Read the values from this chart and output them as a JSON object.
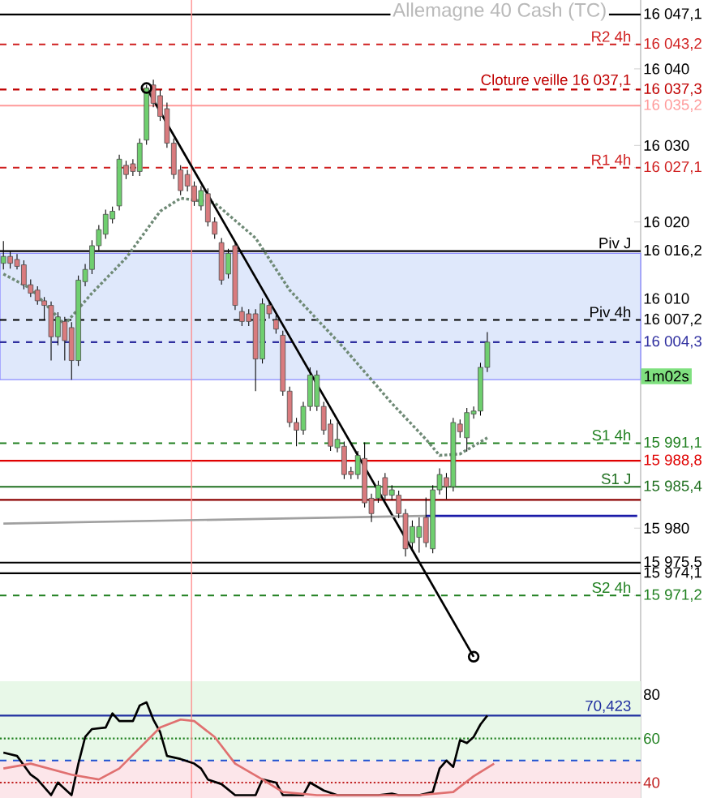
{
  "chart_data": [
    {
      "type": "candlestick",
      "title": "Allemagne 40 Cash (TC)",
      "categories": [
        null,
        null,
        null,
        null,
        null,
        null,
        null,
        null,
        null,
        null,
        null,
        null,
        null,
        null,
        null,
        null,
        null,
        null,
        null,
        null,
        null,
        null,
        null,
        null,
        null,
        null,
        null,
        null,
        null,
        null,
        null,
        null,
        null,
        null,
        null,
        null,
        null,
        null,
        null,
        null,
        null,
        null,
        null,
        null,
        null,
        null,
        null,
        null,
        null,
        null,
        null,
        null,
        null,
        null,
        null,
        null,
        null,
        null,
        null,
        null,
        null,
        null,
        null,
        null,
        null,
        null,
        null,
        null,
        null,
        null,
        null,
        null,
        null,
        null,
        null,
        null,
        null,
        null,
        null,
        null,
        null,
        null,
        null,
        null,
        null,
        null,
        null,
        null,
        null,
        null,
        null,
        null,
        null,
        null
      ],
      "ohlc": [
        [
          16014.6,
          16017.5,
          16013.8,
          16015.5
        ],
        [
          16015.5,
          16016.2,
          16013.9,
          16014.6
        ],
        [
          16015.1,
          16015.8,
          16013.8,
          16014.2
        ],
        [
          16014.4,
          16015.0,
          16011.2,
          16011.8
        ],
        [
          16011.8,
          16012.5,
          16010.2,
          16010.7
        ],
        [
          16011.1,
          16011.6,
          16009.2,
          16009.7
        ],
        [
          16009.7,
          16010.2,
          16007.2,
          16009.1
        ],
        [
          16009.1,
          16009.6,
          16001.9,
          16005.0
        ],
        [
          16005.0,
          16008.2,
          16003.9,
          16007.6
        ],
        [
          16007.0,
          16007.6,
          16001.9,
          16004.5
        ],
        [
          16006.2,
          16006.9,
          15999.4,
          16001.9
        ],
        [
          16001.9,
          16013.0,
          16001.2,
          16012.4
        ],
        [
          16012.2,
          16014.5,
          16011.6,
          16013.8
        ],
        [
          16013.8,
          16017.6,
          16013.2,
          16016.9
        ],
        [
          16016.9,
          16019.6,
          16016.3,
          16019.0
        ],
        [
          16018.4,
          16021.6,
          16017.8,
          16021.0
        ],
        [
          16020.4,
          16022.0,
          16019.8,
          16021.4
        ],
        [
          16022.1,
          16028.8,
          16021.5,
          16028.2
        ],
        [
          16027.4,
          16028.0,
          16025.6,
          16026.2
        ],
        [
          16027.6,
          16028.2,
          16026.0,
          16026.6
        ],
        [
          16026.6,
          16030.9,
          16026.0,
          16030.3
        ],
        [
          16030.7,
          16037.9,
          16030.1,
          16037.5
        ],
        [
          16037.9,
          16038.6,
          16035.0,
          16035.5
        ],
        [
          16036.5,
          16037.3,
          16033.2,
          16033.8
        ],
        [
          16034.8,
          16035.6,
          16029.7,
          16030.3
        ],
        [
          16030.3,
          16030.9,
          16025.6,
          16026.2
        ],
        [
          16026.8,
          16027.4,
          16023.5,
          16024.1
        ],
        [
          16026.2,
          16026.8,
          16024.0,
          16024.7
        ],
        [
          16024.7,
          16025.3,
          16022.1,
          16022.7
        ],
        [
          16022.1,
          16024.7,
          16021.5,
          16024.1
        ],
        [
          16023.7,
          16024.4,
          16019.4,
          16020.0
        ],
        [
          16020.0,
          16020.6,
          16017.8,
          16018.4
        ],
        [
          16017.3,
          16017.9,
          16011.8,
          16012.4
        ],
        [
          16013.2,
          16016.5,
          16012.6,
          16015.9
        ],
        [
          16016.9,
          16017.5,
          16008.5,
          16009.1
        ],
        [
          16008.3,
          16008.9,
          16006.4,
          16007.0
        ],
        [
          16008.0,
          16008.6,
          16006.4,
          16007.0
        ],
        [
          16008.0,
          16008.6,
          15997.9,
          16002.1
        ],
        [
          16002.1,
          16010.0,
          16001.5,
          16009.3
        ],
        [
          16009.1,
          16009.7,
          16007.4,
          16008.0
        ],
        [
          16007.2,
          16007.8,
          16005.4,
          16006.0
        ],
        [
          16005.2,
          16005.8,
          15997.3,
          15997.9
        ],
        [
          15997.9,
          15998.5,
          15993.2,
          15993.8
        ],
        [
          15993.8,
          15994.4,
          15990.7,
          15992.8
        ],
        [
          15992.8,
          15996.5,
          15992.2,
          15995.9
        ],
        [
          15995.9,
          16001.0,
          15995.3,
          16000.0
        ],
        [
          15995.9,
          16000.6,
          15995.3,
          16000.0
        ],
        [
          15995.9,
          15996.5,
          15992.2,
          15992.8
        ],
        [
          15993.6,
          15994.2,
          15990.1,
          15990.7
        ],
        [
          15990.5,
          15993.8,
          15989.9,
          15991.6
        ],
        [
          15990.7,
          15991.3,
          15986.4,
          15987.0
        ],
        [
          15987.4,
          15988.0,
          15986.4,
          15987.0
        ],
        [
          15987.0,
          15990.1,
          15986.4,
          15989.5
        ],
        [
          15989.1,
          15991.2,
          15982.7,
          15983.3
        ],
        [
          15983.9,
          15984.5,
          15980.8,
          15981.9
        ],
        [
          15983.9,
          15986.2,
          15983.3,
          15985.6
        ],
        [
          15986.6,
          15987.2,
          15983.7,
          15984.3
        ],
        [
          15984.3,
          15985.6,
          15983.7,
          15985.0
        ],
        [
          15984.3,
          15984.9,
          15981.3,
          15981.9
        ],
        [
          15981.9,
          15982.5,
          15976.3,
          15977.3
        ],
        [
          15978.1,
          15981.0,
          15977.0,
          15980.2
        ],
        [
          15978.8,
          15981.4,
          15976.8,
          15980.2
        ],
        [
          15981.4,
          15984.0,
          15977.5,
          15978.1
        ],
        [
          15977.3,
          15985.6,
          15976.7,
          15985.0
        ],
        [
          15985.0,
          15987.8,
          15984.4,
          15987.0
        ],
        [
          15986.6,
          15987.2,
          15983.8,
          15985.4
        ],
        [
          15985.4,
          15994.4,
          15984.8,
          15993.8
        ],
        [
          15993.6,
          15994.2,
          15991.8,
          15992.6
        ],
        [
          15991.8,
          15995.7,
          15990.0,
          15995.1
        ],
        [
          15994.9,
          15995.9,
          15994.3,
          15995.3
        ],
        [
          15995.3,
          16001.6,
          15994.7,
          16001.0
        ],
        [
          16001.0,
          16005.6,
          16000.4,
          16004.3
        ],
        null,
        null,
        null,
        null,
        null,
        null,
        null,
        null,
        null,
        null,
        null,
        null,
        null,
        null,
        null,
        null,
        null,
        null,
        null,
        null,
        null,
        null
      ],
      "series": [
        {
          "type": "line",
          "values": [
            16013.2,
            null,
            null,
            null,
            16011.3,
            null,
            null,
            null,
            null,
            16006.6,
            null,
            null,
            null,
            16010.7,
            null,
            null,
            null,
            null,
            16015.3,
            null,
            null,
            null,
            null,
            16021.4,
            null,
            null,
            16023.1,
            null,
            null,
            null,
            null,
            16022.5,
            null,
            null,
            null,
            null,
            null,
            16017.9,
            null,
            null,
            null,
            null,
            16011.1,
            null,
            null,
            null,
            null,
            null,
            null,
            null,
            16003.5,
            null,
            null,
            null,
            null,
            null,
            null,
            15996.3,
            null,
            null,
            null,
            null,
            15991.6,
            null,
            15989.5,
            null,
            null,
            15989.7,
            null,
            null,
            null,
            15991.8,
            null,
            null,
            null,
            null,
            null,
            null,
            null,
            null,
            null,
            null,
            null,
            null,
            null,
            null,
            null,
            null,
            null,
            null,
            null,
            null,
            null,
            null
          ],
          "color": "#6f8a76",
          "line_style": "dotted"
        },
        {
          "type": "line",
          "values": [
            null,
            null,
            null,
            null,
            null,
            null,
            null,
            null,
            null,
            null,
            null,
            null,
            null,
            null,
            null,
            null,
            null,
            null,
            null,
            null,
            null,
            16037.5,
            null,
            null,
            null,
            null,
            null,
            null,
            null,
            null,
            null,
            null,
            null,
            null,
            null,
            null,
            null,
            null,
            null,
            null,
            null,
            null,
            null,
            null,
            null,
            null,
            null,
            null,
            null,
            null,
            null,
            null,
            null,
            null,
            null,
            null,
            null,
            null,
            null,
            null,
            null,
            null,
            null,
            null,
            null,
            null,
            null,
            null,
            null,
            15963.2,
            null,
            null,
            null,
            null,
            null,
            null,
            null,
            null,
            null,
            null,
            null,
            null,
            null,
            null,
            null,
            null,
            null,
            null,
            null,
            null,
            null,
            null,
            null,
            null
          ],
          "color": "#000000",
          "marker": "circle"
        },
        {
          "type": "line",
          "values": [
            15980.6,
            null,
            null,
            null,
            null,
            null,
            null,
            null,
            null,
            null,
            null,
            null,
            null,
            null,
            null,
            null,
            null,
            null,
            null,
            null,
            null,
            null,
            null,
            null,
            null,
            null,
            null,
            null,
            null,
            null,
            null,
            null,
            null,
            null,
            null,
            null,
            null,
            null,
            null,
            null,
            null,
            null,
            null,
            null,
            null,
            null,
            null,
            null,
            null,
            null,
            null,
            null,
            null,
            null,
            null,
            null,
            null,
            null,
            null,
            null,
            null,
            null,
            15981.6,
            null,
            null,
            null,
            null,
            null,
            null,
            null,
            null,
            null,
            null,
            null,
            null,
            null,
            null,
            null,
            null,
            null,
            null,
            null,
            null,
            null,
            null,
            null,
            null,
            null,
            null,
            null,
            null,
            null,
            null,
            null
          ],
          "color": "#a0a0a0"
        },
        {
          "type": "line",
          "values": [
            null,
            null,
            null,
            null,
            null,
            null,
            null,
            null,
            null,
            null,
            null,
            null,
            null,
            null,
            null,
            null,
            null,
            null,
            null,
            null,
            null,
            null,
            null,
            null,
            null,
            null,
            null,
            null,
            null,
            null,
            null,
            null,
            null,
            null,
            null,
            null,
            null,
            null,
            null,
            null,
            null,
            null,
            null,
            null,
            null,
            null,
            null,
            null,
            null,
            null,
            null,
            null,
            null,
            null,
            null,
            null,
            null,
            null,
            null,
            null,
            null,
            null,
            15981.6,
            null,
            null,
            null,
            null,
            null,
            null,
            null,
            null,
            null,
            null,
            null,
            null,
            null,
            null,
            null,
            null,
            null,
            null,
            null,
            null,
            null,
            null,
            null,
            null,
            null,
            null,
            null,
            null,
            null,
            null,
            15981.6
          ],
          "color": "#1a1aa8"
        }
      ],
      "ylim": [
        15960,
        16049
      ],
      "yticks": [
        {
          "value": 16047.1,
          "label": "16 047,1"
        },
        {
          "value": 16043.2,
          "label": "16 043,2"
        },
        {
          "value": 16040,
          "label": "16 040"
        },
        {
          "value": 16037.3,
          "label": "16 037,3"
        },
        {
          "value": 16035.2,
          "label": "16 035,2"
        },
        {
          "value": 16030,
          "label": "16 030"
        },
        {
          "value": 16027.1,
          "label": "16 027,1"
        },
        {
          "value": 16020,
          "label": "16 020"
        },
        {
          "value": 16016.2,
          "label": "16 016,2"
        },
        {
          "value": 16010,
          "label": "16 010"
        },
        {
          "value": 16007.2,
          "label": "16 007,2"
        },
        {
          "value": 16004.3,
          "label": "16 004,3"
        },
        {
          "value": 15991.1,
          "label": "15 991,1"
        },
        {
          "value": 15988.8,
          "label": "15 988,8"
        },
        {
          "value": 15985.4,
          "label": "15 985,4"
        },
        {
          "value": 15980,
          "label": "15 980"
        },
        {
          "value": 15975.5,
          "label": "15 975,5"
        },
        {
          "value": 15974.1,
          "label": "15 974,1"
        },
        {
          "value": 15971.2,
          "label": "15 971,2"
        }
      ],
      "bands": [
        {
          "axis": "y",
          "from": 15999.4,
          "to": 16015.9,
          "color": "#dfe8fb"
        }
      ],
      "ref_lines": [
        {
          "axis": "y",
          "value": 16047.1,
          "color": "#000000"
        },
        {
          "axis": "y",
          "value": 16043.2,
          "label": "R2 4h",
          "color": "#d02020",
          "line_style": "dashed"
        },
        {
          "axis": "y",
          "value": 16037.3,
          "label": "Cloture veille 16 037,1",
          "color": "#c00000",
          "line_style": "dashed"
        },
        {
          "axis": "y",
          "value": 16035.2,
          "color": "#ff9a9a"
        },
        {
          "axis": "y",
          "value": 16027.1,
          "label": "R1 4h",
          "color": "#d02020",
          "line_style": "dashed"
        },
        {
          "axis": "y",
          "value": 16016.2,
          "label": "Piv J",
          "color": "#000000"
        },
        {
          "axis": "y",
          "value": 16007.2,
          "label": "Piv 4h",
          "color": "#000000",
          "line_style": "dashed"
        },
        {
          "axis": "y",
          "value": 16004.3,
          "color": "#3030a0",
          "line_style": "dashed"
        },
        {
          "axis": "y",
          "value": 15991.1,
          "label": "S1 4h",
          "color": "#208020",
          "line_style": "dashed"
        },
        {
          "axis": "y",
          "value": 15988.8,
          "color": "#e00000"
        },
        {
          "axis": "y",
          "value": 15985.4,
          "label": "S1 J",
          "color": "#207020"
        },
        {
          "axis": "y",
          "value": 15983.7,
          "color": "#8b0000"
        },
        {
          "axis": "y",
          "value": 15975.5,
          "color": "#000000"
        },
        {
          "axis": "y",
          "value": 15974.1,
          "color": "#000000"
        },
        {
          "axis": "y",
          "value": 15971.2,
          "label": "S2 4h",
          "color": "#208020",
          "line_style": "dashed"
        }
      ],
      "annotations": [
        "1m02s"
      ],
      "tick_labels": "y"
    },
    {
      "type": "line",
      "categories": [
        null,
        null,
        null,
        null,
        null,
        null,
        null,
        null,
        null,
        null,
        null,
        null,
        null,
        null,
        null,
        null,
        null,
        null,
        null,
        null,
        null,
        null,
        null,
        null,
        null,
        null,
        null,
        null,
        null,
        null,
        null,
        null,
        null,
        null,
        null,
        null,
        null,
        null,
        null,
        null,
        null,
        null,
        null,
        null,
        null,
        null,
        null,
        null,
        null,
        null,
        null,
        null,
        null,
        null,
        null,
        null,
        null,
        null,
        null,
        null,
        null,
        null,
        null,
        null,
        null,
        null,
        null,
        null,
        null,
        null,
        null,
        null,
        null,
        null,
        null,
        null,
        null,
        null,
        null,
        null,
        null,
        null,
        null,
        null,
        null,
        null,
        null,
        null,
        null,
        null,
        null,
        null,
        null,
        null
      ],
      "series": [
        {
          "values": [
            53.6,
            null,
            52.1,
            null,
            43.6,
            41.4,
            null,
            34.3,
            40,
            null,
            34.3,
            48.6,
            60.7,
            64.3,
            null,
            65,
            71.4,
            67.9,
            null,
            67.9,
            75,
            76.4,
            68.6,
            62.9,
            52.1,
            null,
            50.7,
            null,
            48.6,
            46.4,
            41.4,
            null,
            39.3,
            null,
            34.3,
            null,
            null,
            34.3,
            41.4,
            null,
            40,
            34.3,
            null,
            null,
            34.3,
            40,
            null,
            36.4,
            null,
            34.3,
            null,
            null,
            null,
            null,
            null,
            34.3,
            null,
            35,
            34.3,
            null,
            null,
            34.3,
            null,
            35.7,
            46.4,
            50,
            47.1,
            59.3,
            57.9,
            60.7,
            66.4,
            70.4,
            null,
            null,
            null,
            null,
            null,
            null,
            null,
            null,
            null,
            null,
            null,
            null,
            null,
            null,
            null,
            null,
            null,
            null,
            null,
            null,
            null,
            null
          ],
          "color": "#000000"
        },
        {
          "values": [
            46.4,
            null,
            null,
            null,
            48.6,
            null,
            null,
            null,
            null,
            null,
            43.6,
            null,
            null,
            null,
            41.4,
            null,
            null,
            46.4,
            null,
            null,
            55.7,
            null,
            null,
            65,
            null,
            null,
            68.6,
            null,
            67.9,
            null,
            null,
            60.7,
            null,
            null,
            48.6,
            null,
            null,
            null,
            41.4,
            null,
            null,
            35.7,
            null,
            null,
            null,
            null,
            34.3,
            null,
            null,
            null,
            null,
            null,
            null,
            null,
            null,
            34.3,
            null,
            null,
            null,
            null,
            null,
            34.3,
            null,
            null,
            null,
            null,
            35.7,
            null,
            null,
            42.9,
            null,
            null,
            48.6,
            null,
            null,
            null,
            null,
            null,
            null,
            null,
            null,
            null,
            null,
            null,
            null,
            null,
            null,
            null,
            null,
            null,
            null,
            null,
            null,
            null
          ],
          "color": "#e07070"
        }
      ],
      "ylim": [
        33,
        86
      ],
      "yticks": [
        80,
        60,
        40
      ],
      "bands": [
        {
          "axis": "y",
          "from": 50,
          "to": 86,
          "color": "#e8f8e8"
        },
        {
          "axis": "y",
          "from": 33,
          "to": 50,
          "color": "#fce6ea"
        }
      ],
      "ref_lines": [
        {
          "axis": "y",
          "value": 70.423,
          "label": "70,423",
          "color": "#2030a0"
        },
        {
          "axis": "y",
          "value": 60,
          "color": "#208020",
          "line_style": "dotted"
        },
        {
          "axis": "y",
          "value": 50,
          "color": "#2050d0",
          "line_style": "dashed"
        },
        {
          "axis": "y",
          "value": 40,
          "color": "#c02020",
          "line_style": "dotted"
        }
      ],
      "tick_labels": "y"
    }
  ]
}
